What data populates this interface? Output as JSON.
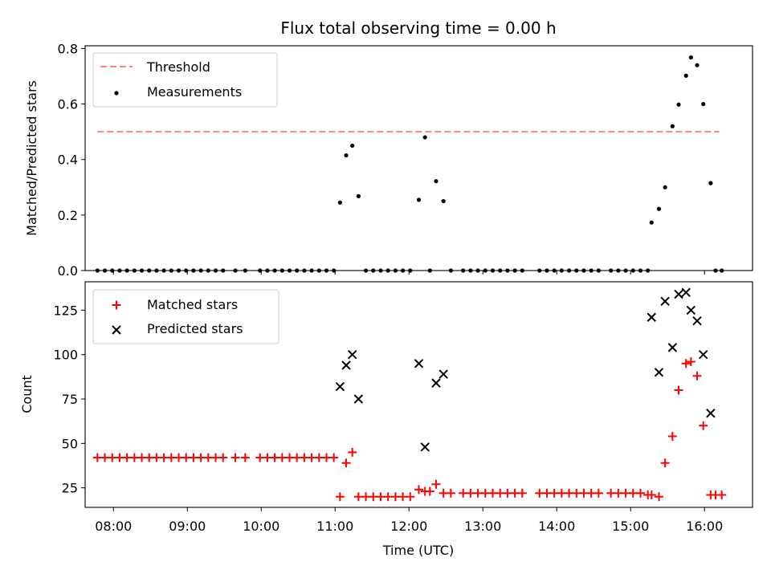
{
  "chart_data": [
    {
      "type": "scatter",
      "title": "Flux total observing time = 0.00 h",
      "ylabel": "Matched/Predicted stars",
      "xlabel": "",
      "xlim": [
        "07:37",
        "16:39"
      ],
      "ylim": [
        0,
        0.81
      ],
      "yticks": [
        "0.0",
        "0.2",
        "0.4",
        "0.6",
        "0.8"
      ],
      "grid": false,
      "legend_position": "top-left",
      "threshold": {
        "name": "Threshold",
        "value": 0.5,
        "x_range": [
          "07:47",
          "16:12"
        ],
        "color": "#ff7f7f",
        "style": "dashed"
      },
      "series": [
        {
          "name": "Measurements",
          "color": "#000000",
          "marker": "dot",
          "points": [
            [
              "07:47",
              0
            ],
            [
              "07:53",
              0
            ],
            [
              "07:59",
              0
            ],
            [
              "08:05",
              0
            ],
            [
              "08:11",
              0
            ],
            [
              "08:17",
              0
            ],
            [
              "08:23",
              0
            ],
            [
              "08:29",
              0
            ],
            [
              "08:35",
              0
            ],
            [
              "08:41",
              0
            ],
            [
              "08:47",
              0
            ],
            [
              "08:53",
              0
            ],
            [
              "08:59",
              0
            ],
            [
              "09:05",
              0
            ],
            [
              "09:11",
              0
            ],
            [
              "09:17",
              0
            ],
            [
              "09:23",
              0
            ],
            [
              "09:29",
              0
            ],
            [
              "09:39",
              0
            ],
            [
              "09:47",
              0
            ],
            [
              "09:59",
              0
            ],
            [
              "10:05",
              0
            ],
            [
              "10:11",
              0
            ],
            [
              "10:17",
              0
            ],
            [
              "10:23",
              0
            ],
            [
              "10:29",
              0
            ],
            [
              "10:35",
              0
            ],
            [
              "10:41",
              0
            ],
            [
              "10:47",
              0
            ],
            [
              "10:53",
              0
            ],
            [
              "10:59",
              0
            ],
            [
              "11:04",
              0.245
            ],
            [
              "11:09",
              0.415
            ],
            [
              "11:14",
              0.45
            ],
            [
              "11:19",
              0.268
            ],
            [
              "11:25",
              0
            ],
            [
              "11:31",
              0
            ],
            [
              "11:37",
              0
            ],
            [
              "11:43",
              0
            ],
            [
              "11:49",
              0
            ],
            [
              "11:55",
              0
            ],
            [
              "12:01",
              0
            ],
            [
              "12:08",
              0.255
            ],
            [
              "12:13",
              0.48
            ],
            [
              "12:17",
              0
            ],
            [
              "12:22",
              0.322
            ],
            [
              "12:28",
              0.25
            ],
            [
              "12:34",
              0
            ],
            [
              "12:44",
              0
            ],
            [
              "12:50",
              0
            ],
            [
              "12:56",
              0
            ],
            [
              "13:02",
              0
            ],
            [
              "13:08",
              0
            ],
            [
              "13:14",
              0
            ],
            [
              "13:20",
              0
            ],
            [
              "13:26",
              0
            ],
            [
              "13:32",
              0
            ],
            [
              "13:46",
              0
            ],
            [
              "13:52",
              0
            ],
            [
              "13:58",
              0
            ],
            [
              "14:04",
              0
            ],
            [
              "14:10",
              0
            ],
            [
              "14:16",
              0
            ],
            [
              "14:22",
              0
            ],
            [
              "14:28",
              0
            ],
            [
              "14:34",
              0
            ],
            [
              "14:44",
              0
            ],
            [
              "14:50",
              0
            ],
            [
              "14:56",
              0
            ],
            [
              "15:02",
              0
            ],
            [
              "15:08",
              0
            ],
            [
              "15:14",
              0
            ],
            [
              "15:17",
              0.173
            ],
            [
              "15:23",
              0.222
            ],
            [
              "15:28",
              0.3
            ],
            [
              "15:34",
              0.52
            ],
            [
              "15:39",
              0.598
            ],
            [
              "15:45",
              0.702
            ],
            [
              "15:49",
              0.768
            ],
            [
              "15:54",
              0.74
            ],
            [
              "15:59",
              0.6
            ],
            [
              "16:05",
              0.315
            ],
            [
              "16:09",
              0
            ],
            [
              "16:14",
              0
            ]
          ]
        }
      ]
    },
    {
      "type": "scatter",
      "title": "",
      "ylabel": "Count",
      "xlabel": "Time (UTC)",
      "xlim": [
        "07:37",
        "16:39"
      ],
      "ylim": [
        14,
        141
      ],
      "yticks": [
        "25",
        "50",
        "75",
        "100",
        "125"
      ],
      "xticks": [
        "08:00",
        "09:00",
        "10:00",
        "11:00",
        "12:00",
        "13:00",
        "14:00",
        "15:00",
        "16:00"
      ],
      "grid": false,
      "legend_position": "top-left",
      "series": [
        {
          "name": "Matched stars",
          "color": "#ff0000",
          "marker": "plus",
          "points": [
            [
              "07:47",
              42
            ],
            [
              "07:53",
              42
            ],
            [
              "07:59",
              42
            ],
            [
              "08:05",
              42
            ],
            [
              "08:11",
              42
            ],
            [
              "08:17",
              42
            ],
            [
              "08:23",
              42
            ],
            [
              "08:29",
              42
            ],
            [
              "08:35",
              42
            ],
            [
              "08:41",
              42
            ],
            [
              "08:47",
              42
            ],
            [
              "08:53",
              42
            ],
            [
              "08:59",
              42
            ],
            [
              "09:05",
              42
            ],
            [
              "09:11",
              42
            ],
            [
              "09:17",
              42
            ],
            [
              "09:23",
              42
            ],
            [
              "09:29",
              42
            ],
            [
              "09:39",
              42
            ],
            [
              "09:47",
              42
            ],
            [
              "09:59",
              42
            ],
            [
              "10:05",
              42
            ],
            [
              "10:11",
              42
            ],
            [
              "10:17",
              42
            ],
            [
              "10:23",
              42
            ],
            [
              "10:29",
              42
            ],
            [
              "10:35",
              42
            ],
            [
              "10:41",
              42
            ],
            [
              "10:47",
              42
            ],
            [
              "10:53",
              42
            ],
            [
              "10:59",
              42
            ],
            [
              "11:04",
              20
            ],
            [
              "11:09",
              39
            ],
            [
              "11:14",
              45
            ],
            [
              "11:19",
              20
            ],
            [
              "11:25",
              20
            ],
            [
              "11:31",
              20
            ],
            [
              "11:37",
              20
            ],
            [
              "11:43",
              20
            ],
            [
              "11:49",
              20
            ],
            [
              "11:55",
              20
            ],
            [
              "12:01",
              20
            ],
            [
              "12:08",
              24
            ],
            [
              "12:13",
              23
            ],
            [
              "12:17",
              23
            ],
            [
              "12:22",
              27
            ],
            [
              "12:28",
              22
            ],
            [
              "12:34",
              22
            ],
            [
              "12:44",
              22
            ],
            [
              "12:50",
              22
            ],
            [
              "12:56",
              22
            ],
            [
              "13:02",
              22
            ],
            [
              "13:08",
              22
            ],
            [
              "13:14",
              22
            ],
            [
              "13:20",
              22
            ],
            [
              "13:26",
              22
            ],
            [
              "13:32",
              22
            ],
            [
              "13:46",
              22
            ],
            [
              "13:52",
              22
            ],
            [
              "13:58",
              22
            ],
            [
              "14:04",
              22
            ],
            [
              "14:10",
              22
            ],
            [
              "14:16",
              22
            ],
            [
              "14:22",
              22
            ],
            [
              "14:28",
              22
            ],
            [
              "14:34",
              22
            ],
            [
              "14:44",
              22
            ],
            [
              "14:50",
              22
            ],
            [
              "14:56",
              22
            ],
            [
              "15:02",
              22
            ],
            [
              "15:08",
              22
            ],
            [
              "15:14",
              21
            ],
            [
              "15:17",
              21
            ],
            [
              "15:23",
              20
            ],
            [
              "15:28",
              39
            ],
            [
              "15:34",
              54
            ],
            [
              "15:39",
              80
            ],
            [
              "15:45",
              95
            ],
            [
              "15:49",
              96
            ],
            [
              "15:54",
              88
            ],
            [
              "15:59",
              60
            ],
            [
              "16:05",
              21
            ],
            [
              "16:09",
              21
            ],
            [
              "16:14",
              21
            ]
          ]
        },
        {
          "name": "Predicted stars",
          "color": "#000000",
          "marker": "x",
          "points": [
            [
              "11:04",
              82
            ],
            [
              "11:09",
              94
            ],
            [
              "11:14",
              100
            ],
            [
              "11:19",
              75
            ],
            [
              "12:08",
              95
            ],
            [
              "12:13",
              48
            ],
            [
              "12:22",
              84
            ],
            [
              "12:28",
              89
            ],
            [
              "15:17",
              121
            ],
            [
              "15:23",
              90
            ],
            [
              "15:28",
              130
            ],
            [
              "15:34",
              104
            ],
            [
              "15:39",
              134
            ],
            [
              "15:45",
              135
            ],
            [
              "15:49",
              125
            ],
            [
              "15:54",
              119
            ],
            [
              "15:59",
              100
            ],
            [
              "16:05",
              67
            ]
          ]
        }
      ]
    }
  ]
}
